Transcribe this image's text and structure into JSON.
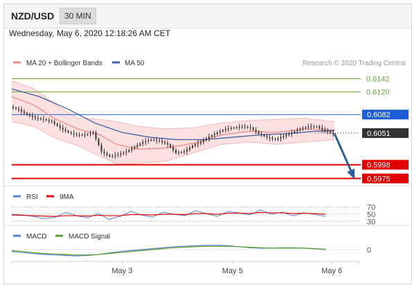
{
  "header": {
    "pair": "NZD/USD",
    "timeframe": "30 MIN"
  },
  "timestamp": "Wednesday, May 6, 2020 12:18:26 AM CET",
  "legend": {
    "ma20": "MA 20 + Bollinger Bands",
    "ma50": "MA 50",
    "research": "Research © 2020 Trading Central"
  },
  "colors": {
    "band": "#fbd9da",
    "ma20": "#f08b8b",
    "ma50": "#3f5fa8",
    "price": "#333333",
    "green": "#66aa33",
    "blue": "#1c5cd6",
    "red": "#e00000",
    "arrow": "#2f5f9e"
  },
  "chart_data": [
    {
      "type": "line",
      "title": "NZD/USD 30 MIN",
      "series_names": [
        "MA 20 + Bollinger Bands",
        "MA 50"
      ],
      "ylim": [
        0.5965,
        0.616
      ],
      "levels": [
        {
          "value": 0.6142,
          "label": "0.6142",
          "color": "#66aa33"
        },
        {
          "value": 0.612,
          "label": "0.6120",
          "color": "#66aa33"
        },
        {
          "value": 0.6082,
          "label": "0.6082",
          "color": "#1c5cd6"
        },
        {
          "value": 0.6051,
          "label": "0.6051",
          "color": "#333333"
        },
        {
          "value": 0.5998,
          "label": "0.5998",
          "color": "#e00000"
        },
        {
          "value": 0.5975,
          "label": "0.5975",
          "color": "#e00000"
        }
      ],
      "price_path": [
        [
          0,
          0.6095
        ],
        [
          3,
          0.609
        ],
        [
          6,
          0.6082
        ],
        [
          9,
          0.6076
        ],
        [
          12,
          0.6074
        ],
        [
          15,
          0.607
        ],
        [
          18,
          0.606
        ],
        [
          21,
          0.6052
        ],
        [
          24,
          0.6048
        ],
        [
          27,
          0.6048
        ],
        [
          30,
          0.6052
        ],
        [
          33,
          0.602
        ],
        [
          36,
          0.6012
        ],
        [
          39,
          0.6015
        ],
        [
          42,
          0.602
        ],
        [
          45,
          0.6028
        ],
        [
          48,
          0.6036
        ],
        [
          51,
          0.604
        ],
        [
          54,
          0.6038
        ],
        [
          57,
          0.6032
        ],
        [
          60,
          0.6018
        ],
        [
          63,
          0.602
        ],
        [
          66,
          0.603
        ],
        [
          69,
          0.6036
        ],
        [
          72,
          0.6045
        ],
        [
          75,
          0.6052
        ],
        [
          78,
          0.6058
        ],
        [
          81,
          0.606
        ],
        [
          84,
          0.6062
        ],
        [
          87,
          0.606
        ],
        [
          90,
          0.605
        ],
        [
          93,
          0.6044
        ],
        [
          96,
          0.604
        ],
        [
          99,
          0.6046
        ],
        [
          102,
          0.6052
        ],
        [
          105,
          0.6058
        ],
        [
          108,
          0.6062
        ],
        [
          111,
          0.6062
        ],
        [
          114,
          0.6055
        ],
        [
          117,
          0.605
        ]
      ],
      "bollinger": {
        "upper": [
          [
            0,
            0.6138
          ],
          [
            8,
            0.6126
          ],
          [
            16,
            0.6098
          ],
          [
            24,
            0.6076
          ],
          [
            32,
            0.6074
          ],
          [
            38,
            0.607
          ],
          [
            46,
            0.6062
          ],
          [
            56,
            0.6058
          ],
          [
            66,
            0.606
          ],
          [
            76,
            0.6068
          ],
          [
            86,
            0.6072
          ],
          [
            96,
            0.6074
          ],
          [
            106,
            0.6076
          ],
          [
            117,
            0.607
          ]
        ],
        "lower": [
          [
            0,
            0.607
          ],
          [
            8,
            0.6062
          ],
          [
            16,
            0.6042
          ],
          [
            24,
            0.603
          ],
          [
            32,
            0.6012
          ],
          [
            38,
            0.6
          ],
          [
            46,
            0.6
          ],
          [
            56,
            0.6004
          ],
          [
            66,
            0.6018
          ],
          [
            76,
            0.6032
          ],
          [
            86,
            0.6036
          ],
          [
            96,
            0.6032
          ],
          [
            106,
            0.6036
          ],
          [
            117,
            0.604
          ]
        ],
        "mid": [
          [
            0,
            0.6112
          ],
          [
            8,
            0.6098
          ],
          [
            16,
            0.6074
          ],
          [
            24,
            0.6058
          ],
          [
            32,
            0.6048
          ],
          [
            38,
            0.6032
          ],
          [
            46,
            0.6024
          ],
          [
            56,
            0.6026
          ],
          [
            66,
            0.6034
          ],
          [
            76,
            0.6048
          ],
          [
            86,
            0.6054
          ],
          [
            96,
            0.6052
          ],
          [
            106,
            0.6058
          ],
          [
            117,
            0.6056
          ]
        ]
      },
      "ma50": [
        [
          0,
          0.6125
        ],
        [
          10,
          0.6112
        ],
        [
          20,
          0.6092
        ],
        [
          30,
          0.6068
        ],
        [
          40,
          0.6052
        ],
        [
          50,
          0.6044
        ],
        [
          60,
          0.604
        ],
        [
          70,
          0.604
        ],
        [
          80,
          0.6044
        ],
        [
          90,
          0.6048
        ],
        [
          100,
          0.605
        ],
        [
          110,
          0.6054
        ],
        [
          117,
          0.6055
        ]
      ],
      "forecast_arrow": {
        "from": [
          117,
          0.605
        ],
        "to": [
          124,
          0.5977
        ]
      },
      "x_range": [
        0,
        126
      ]
    },
    {
      "type": "line",
      "title": "RSI",
      "series_names": [
        "RSI",
        "9MA"
      ],
      "ylim": [
        25,
        75
      ],
      "ticks": [
        "70",
        "50",
        "30"
      ],
      "tick_values": [
        70,
        50,
        30
      ],
      "rsi": [
        50,
        48,
        44,
        38,
        42,
        55,
        46,
        40,
        52,
        36,
        44,
        58,
        48,
        42,
        56,
        50,
        46,
        60,
        52,
        44,
        58,
        54,
        48,
        62,
        50,
        56,
        46,
        54,
        50,
        44
      ],
      "ma9": [
        48,
        47,
        46,
        45,
        44,
        46,
        46,
        45,
        47,
        46,
        46,
        49,
        49,
        48,
        50,
        50,
        49,
        52,
        52,
        50,
        53,
        53,
        52,
        55,
        54,
        54,
        52,
        53,
        52,
        50
      ]
    },
    {
      "type": "line",
      "title": "MACD",
      "series_names": [
        "MACD",
        "MACD Signal"
      ],
      "ylim": [
        -0.002,
        0.002
      ],
      "ticks": [
        "0"
      ],
      "tick_values": [
        0
      ],
      "macd": [
        -0.0004,
        -0.0006,
        -0.0008,
        -0.001,
        -0.0011,
        -0.0012,
        -0.0013,
        -0.0012,
        -0.001,
        -0.0007,
        -0.0004,
        -0.0002,
        0.0,
        0.0002,
        0.0004,
        0.0006,
        0.0007,
        0.0008,
        0.0009,
        0.0009,
        0.0008,
        0.0006,
        0.0004,
        0.0003,
        0.0003,
        0.0004,
        0.0004,
        0.0003,
        0.0002,
        0.0
      ],
      "signal": [
        -0.0002,
        -0.0004,
        -0.0006,
        -0.0008,
        -0.0009,
        -0.001,
        -0.0011,
        -0.0011,
        -0.001,
        -0.0008,
        -0.0006,
        -0.0004,
        -0.0002,
        0.0,
        0.0002,
        0.0004,
        0.0005,
        0.0006,
        0.0007,
        0.0007,
        0.0007,
        0.0006,
        0.0005,
        0.0004,
        0.0003,
        0.0003,
        0.0003,
        0.0003,
        0.0002,
        0.0001
      ],
      "x_labels": [
        "May 3",
        "May 5",
        "May 6"
      ],
      "x_label_positions": [
        40,
        80,
        116
      ]
    }
  ]
}
